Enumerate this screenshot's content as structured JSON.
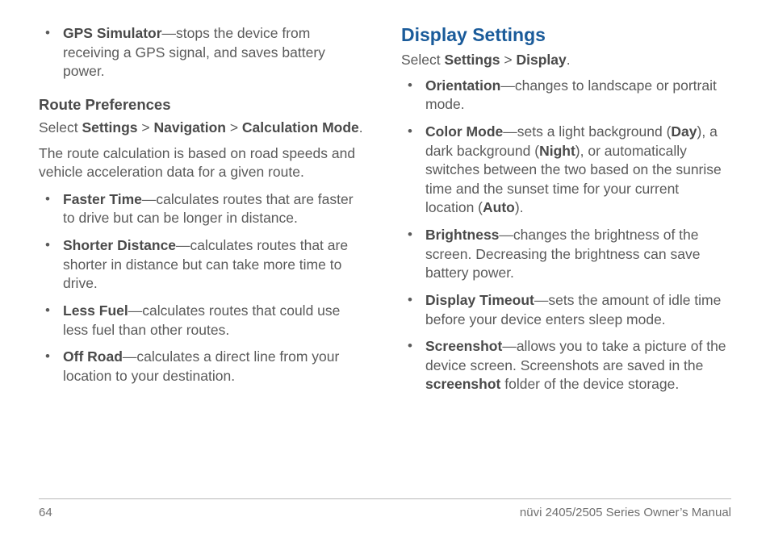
{
  "left": {
    "top_bullet": {
      "term": "GPS Simulator",
      "desc": "—stops the device from receiving a GPS signal, and saves battery power."
    },
    "sub_heading": "Route Preferences",
    "path_prefix": "Select ",
    "path_a": "Settings",
    "path_sep": " > ",
    "path_b": "Navigation",
    "path_c": "Calculation Mode",
    "path_period": ".",
    "intro": "The route calculation is based on road speeds and vehicle acceleration data for a given route.",
    "items": [
      {
        "term": "Faster Time",
        "desc": "—calculates routes that are faster to drive but can be longer in distance."
      },
      {
        "term": "Shorter Distance",
        "desc": "—calculates routes that are shorter in distance but can take more time to drive."
      },
      {
        "term": "Less Fuel",
        "desc": "—calculates routes that could use less fuel than other routes."
      },
      {
        "term": "Off Road",
        "desc": "—calculates a direct line from your location to your destination."
      }
    ]
  },
  "right": {
    "title": "Display Settings",
    "path_prefix": "Select ",
    "path_a": "Settings",
    "path_sep": " > ",
    "path_b": "Display",
    "path_period": ".",
    "items": [
      {
        "term": "Orientation",
        "desc": "—changes to landscape or portrait mode."
      },
      {
        "term": "Color Mode",
        "pre": "—sets a light background (",
        "b1": "Day",
        "mid1": "), a dark background (",
        "b2": "Night",
        "mid2": "), or automatically switches between the two based on the sunrise time and the sunset time for your current location (",
        "b3": "Auto",
        "post": ")."
      },
      {
        "term": "Brightness",
        "desc": "—changes the brightness of the screen. Decreasing the brightness can save battery power."
      },
      {
        "term": "Display Timeout",
        "desc": "—sets the amount of idle time before your device enters sleep mode."
      },
      {
        "term": "Screenshot",
        "pre": "—allows you to take a picture of the device screen. Screenshots are saved in the ",
        "b1": "screenshot",
        "post": " folder of the device storage."
      }
    ]
  },
  "footer": {
    "page": "64",
    "manual": "nüvi 2405/2505 Series Owner’s Manual"
  }
}
